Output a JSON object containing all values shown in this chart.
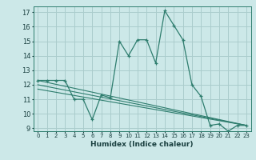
{
  "xlabel": "Humidex (Indice chaleur)",
  "ylabel": "",
  "bg_color": "#cce8e8",
  "grid_color": "#aacccc",
  "line_color": "#2e7d6e",
  "xlim": [
    -0.5,
    23.5
  ],
  "ylim": [
    8.8,
    17.4
  ],
  "xticks": [
    0,
    1,
    2,
    3,
    4,
    5,
    6,
    7,
    8,
    9,
    10,
    11,
    12,
    13,
    14,
    15,
    16,
    17,
    18,
    19,
    20,
    21,
    22,
    23
  ],
  "yticks": [
    9,
    10,
    11,
    12,
    13,
    14,
    15,
    16,
    17
  ],
  "line1_x": [
    0,
    1,
    2,
    3,
    4,
    5,
    6,
    7,
    8,
    9,
    10,
    11,
    12,
    13,
    14,
    15,
    16,
    17,
    18,
    19,
    20,
    21,
    22,
    23
  ],
  "line1_y": [
    12.3,
    12.3,
    12.3,
    12.3,
    11.0,
    11.0,
    9.6,
    11.3,
    11.1,
    15.0,
    14.0,
    15.1,
    15.1,
    13.5,
    17.1,
    16.1,
    15.1,
    12.0,
    11.2,
    9.2,
    9.3,
    8.8,
    9.2,
    9.2
  ],
  "line2_x": [
    0,
    23
  ],
  "line2_y": [
    12.3,
    9.2
  ],
  "line3_x": [
    0,
    23
  ],
  "line3_y": [
    12.0,
    9.2
  ],
  "line4_x": [
    0,
    23
  ],
  "line4_y": [
    11.7,
    9.2
  ]
}
